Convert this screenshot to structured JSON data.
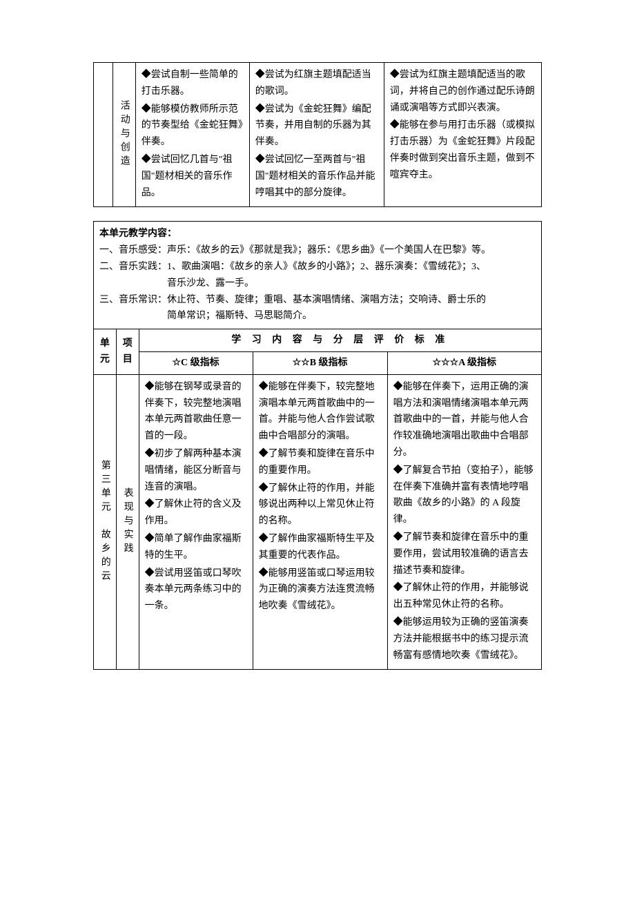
{
  "table1": {
    "row_category": "活动与创造",
    "col_c": {
      "items": [
        "◆尝试自制一些简单的打击乐器。",
        "◆能够模仿教师所示范的节奏型给《金蛇狂舞》伴奏。",
        "◆尝试回忆几首与\"祖国\"题材相关的音乐作品。"
      ]
    },
    "col_b": {
      "items": [
        "◆尝试为红旗主题填配适当的歌词。",
        "◆尝试为《金蛇狂舞》编配节奏，并用自制的乐器为其伴奏。",
        "◆尝试回忆一至两首与\"祖国\"题材相关的音乐作品并能哼唱其中的部分旋律。"
      ]
    },
    "col_a": {
      "items": [
        "◆尝试为红旗主题填配适当的歌词，并将自己的创作通过配乐诗朗诵或演唱等方式即兴表演。",
        "◆能够在参与用打击乐器（或模拟打击乐器）为《金蛇狂舞》片段配伴奏时做到突出音乐主题，做到不喧宾夺主。"
      ]
    }
  },
  "unit_content": {
    "title": "本单元教学内容：",
    "line1": "一、音乐感受：声乐：《故乡的云》《那就是我》；器乐：《思乡曲》《一个美国人在巴黎》等。",
    "line2_part1": "二、音乐实践：1、歌曲演唱：《故乡的亲人》《故乡的小路》；2、器乐演奏：《雪绒花》；3、",
    "line2_part2": "音乐沙龙、露一手。",
    "line3_part1": "三、音乐常识：休止符、节奏、旋律；重唱、基本演唱情绪、演唱方法；交响诗、爵士乐的",
    "line3_part2": "简单常识；福斯特、马思聪简介。"
  },
  "table2": {
    "header": {
      "unit": "单元",
      "category": "项目",
      "title": "学 习 内 容 与 分 层 评 价 标 准",
      "col_c": "☆C 级指标",
      "col_b": "☆☆B 级指标",
      "col_a": "☆☆☆A 级指标"
    },
    "unit_name": "第三单元　故乡的云",
    "row_category": "表现与实践",
    "col_c": {
      "items": [
        "◆能够在钢琴或录音的伴奏下，较完整地演唱本单元两首歌曲任意一首的一段。",
        "◆初步了解两种基本演唱情绪，能区分断音与连音的演唱。",
        "◆了解休止符的含义及作用。",
        "◆简单了解作曲家福斯特的生平。",
        "◆尝试用竖笛或口琴吹奏本单元两条练习中的一条。"
      ]
    },
    "col_b": {
      "items": [
        "◆能够在伴奏下，较完整地演唱本单元两首歌曲中的一首。并能与他人合作尝试歌曲中合唱部分的演唱。",
        "◆了解节奏和旋律在音乐中的重要作用。",
        "◆了解休止符的作用，并能够说出两种以上常见休止符的名称。",
        "◆了解作曲家福斯特生平及其重要的代表作品。",
        "◆能够用竖笛或口琴运用较为正确的演奏方法连贯流畅地吹奏《雪绒花》。"
      ]
    },
    "col_a": {
      "items": [
        "◆能够在伴奏下，运用正确的演唱方法和演唱情绪演唱本单元两首歌曲中的一首，并能与他人合作较准确地演唱出歌曲中合唱部分。",
        "◆了解复合节拍（变拍子），能够在伴奏下准确并富有表情地哼唱歌曲《故乡的小路》的 A 段旋律。",
        "◆了解节奏和旋律在音乐中的重要作用，尝试用较准确的语言去描述节奏和旋律。",
        "◆了解休止符的作用，并能够说出五种常见休止符的名称。",
        "◆能够运用较为正确的竖笛演奏方法并能根据书中的练习提示流畅富有感情地吹奏《雪绒花》。"
      ]
    }
  }
}
